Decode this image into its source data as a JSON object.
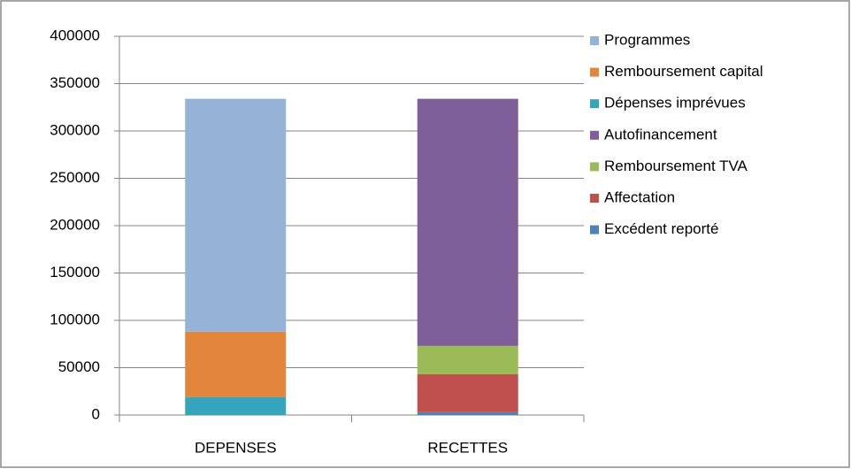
{
  "chart_data": {
    "type": "stacked_bar",
    "categories": [
      "DEPENSES",
      "RECETTES"
    ],
    "series": [
      {
        "name": "Excédent reporté",
        "color": "#4f81bd",
        "values": [
          null,
          3000
        ]
      },
      {
        "name": "Affectation",
        "color": "#c0504d",
        "values": [
          null,
          40000
        ]
      },
      {
        "name": "Remboursement TVA",
        "color": "#9bbb59",
        "values": [
          null,
          30000
        ]
      },
      {
        "name": "Autofinancement",
        "color": "#7f5f99",
        "values": [
          null,
          261000
        ]
      },
      {
        "name": "Dépenses imprévues",
        "color": "#35a5bd",
        "values": [
          19000,
          null
        ]
      },
      {
        "name": "Remboursement capital",
        "color": "#e2863c",
        "values": [
          69000,
          null
        ]
      },
      {
        "name": "Programmes",
        "color": "#95b3d7",
        "values": [
          246000,
          null
        ]
      }
    ],
    "ylim": [
      0,
      400000
    ],
    "yticks": [
      0,
      50000,
      100000,
      150000,
      200000,
      250000,
      300000,
      350000,
      400000
    ],
    "grid": true,
    "legend": "right"
  }
}
